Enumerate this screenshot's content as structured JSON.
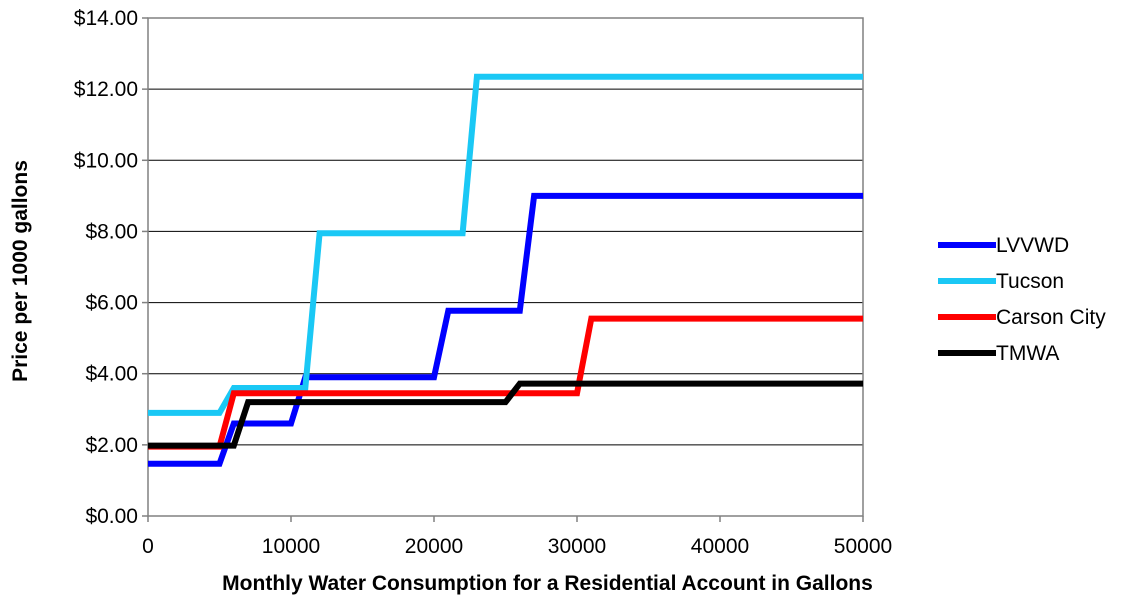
{
  "chart_data": {
    "type": "line",
    "title": "",
    "xlabel": "Monthly Water Consumption for a Residential Account in Gallons",
    "ylabel": "Price per 1000 gallons",
    "xlim": [
      0,
      50000
    ],
    "ylim": [
      0,
      14
    ],
    "x_ticks": [
      0,
      10000,
      20000,
      30000,
      40000,
      50000
    ],
    "x_tick_labels": [
      "0",
      "10000",
      "20000",
      "30000",
      "40000",
      "50000"
    ],
    "y_ticks": [
      0,
      2,
      4,
      6,
      8,
      10,
      12,
      14
    ],
    "y_tick_labels": [
      "$0.00",
      "$2.00",
      "$4.00",
      "$6.00",
      "$8.00",
      "$10.00",
      "$12.00",
      "$14.00"
    ],
    "grid": "horizontal",
    "legend_position": "right",
    "series": [
      {
        "name": "LVVWD",
        "color": "#0000FF",
        "points": [
          [
            0,
            1.47
          ],
          [
            5000,
            1.47
          ],
          [
            6000,
            2.6
          ],
          [
            10000,
            2.6
          ],
          [
            11000,
            3.9
          ],
          [
            20000,
            3.9
          ],
          [
            21000,
            5.77
          ],
          [
            26000,
            5.77
          ],
          [
            27000,
            9.0
          ],
          [
            50000,
            9.0
          ]
        ]
      },
      {
        "name": "Tucson",
        "color": "#1AC8F5",
        "points": [
          [
            0,
            2.9
          ],
          [
            5000,
            2.9
          ],
          [
            6000,
            3.6
          ],
          [
            11000,
            3.6
          ],
          [
            12000,
            7.95
          ],
          [
            22000,
            7.95
          ],
          [
            23000,
            12.35
          ],
          [
            50000,
            12.35
          ]
        ]
      },
      {
        "name": "Carson City",
        "color": "#FF0000",
        "points": [
          [
            0,
            1.95
          ],
          [
            5000,
            1.95
          ],
          [
            6000,
            3.45
          ],
          [
            30000,
            3.45
          ],
          [
            31000,
            5.55
          ],
          [
            50000,
            5.55
          ]
        ]
      },
      {
        "name": "TMWA",
        "color": "#000000",
        "points": [
          [
            0,
            1.98
          ],
          [
            6000,
            1.98
          ],
          [
            7000,
            3.2
          ],
          [
            25000,
            3.2
          ],
          [
            26000,
            3.72
          ],
          [
            50000,
            3.72
          ]
        ]
      }
    ]
  }
}
